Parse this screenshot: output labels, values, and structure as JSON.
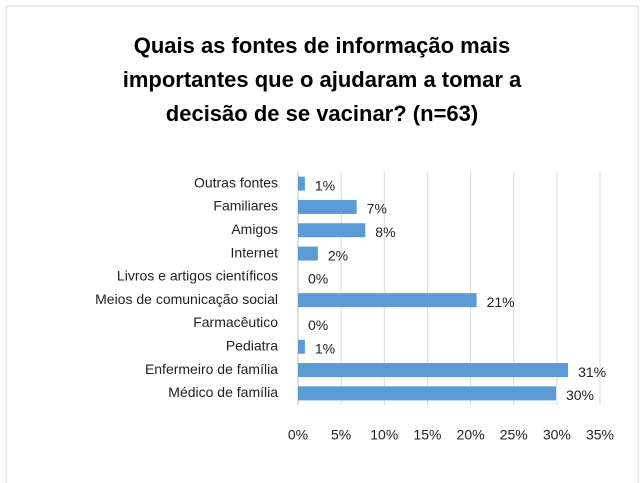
{
  "chart_data": {
    "type": "bar",
    "orientation": "horizontal",
    "title": "Quais as fontes de informação mais importantes que o ajudaram a tomar a decisão de se vacinar? (n=63)",
    "categories": [
      "Outras fontes",
      "Familiares",
      "Amigos",
      "Internet",
      "Livros e artigos científicos",
      "Meios de comunicação social",
      "Farmacêutico",
      "Pediatra",
      "Enfermeiro de família",
      "Médico de família"
    ],
    "values": [
      0.8,
      6.8,
      7.8,
      2.3,
      0,
      20.7,
      0,
      0.8,
      31.3,
      29.9
    ],
    "value_labels": [
      "1%",
      "7%",
      "8%",
      "2%",
      "0%",
      "21%",
      "0%",
      "1%",
      "31%",
      "30%"
    ],
    "color": "#5b9bd5",
    "xlim": [
      0,
      35
    ],
    "xticks": [
      {
        "value": 0,
        "label": "0%"
      },
      {
        "value": 5,
        "label": "5%"
      },
      {
        "value": 10,
        "label": "10%"
      },
      {
        "value": 15,
        "label": "15%"
      },
      {
        "value": 20,
        "label": "20%"
      },
      {
        "value": 25,
        "label": "25%"
      },
      {
        "value": 30,
        "label": "30%"
      },
      {
        "value": 35,
        "label": "35%"
      }
    ],
    "grid": true
  }
}
